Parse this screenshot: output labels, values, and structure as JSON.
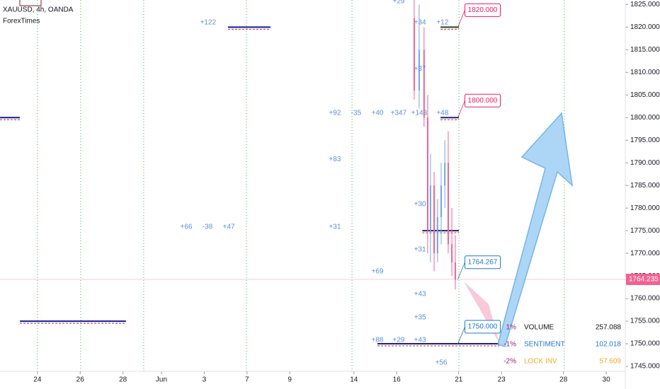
{
  "chart_data": {
    "type": "candlestick",
    "title": "XAUUSD, 4h, OANDA",
    "subtitle": "ForexTimes",
    "xlim": [
      -1.75,
      27.49
    ],
    "ylim": [
      1740,
      1826
    ],
    "yticks": [
      {
        "value": 1745,
        "label": "1745.000"
      },
      {
        "value": 1750,
        "label": "1750.000"
      },
      {
        "value": 1755,
        "label": "1755.000"
      },
      {
        "value": 1760,
        "label": "1760.000"
      },
      {
        "value": 1765,
        "label": "1765.000"
      },
      {
        "value": 1770,
        "label": "1770.000"
      },
      {
        "value": 1775,
        "label": "1775.000"
      },
      {
        "value": 1780,
        "label": "1780.000"
      },
      {
        "value": 1785,
        "label": "1785.000"
      },
      {
        "value": 1790,
        "label": "1790.000"
      },
      {
        "value": 1795,
        "label": "1795.000"
      },
      {
        "value": 1800,
        "label": "1800.000"
      },
      {
        "value": 1805,
        "label": "1805.000"
      },
      {
        "value": 1810,
        "label": "1810.000"
      },
      {
        "value": 1815,
        "label": "1815.000"
      },
      {
        "value": 1820,
        "label": "1820.000"
      },
      {
        "value": 1825,
        "label": "1825.000"
      }
    ],
    "xticks": [
      {
        "value": 0,
        "label": "24"
      },
      {
        "value": 2,
        "label": "26"
      },
      {
        "value": 4,
        "label": "28"
      },
      {
        "value": 5.8,
        "label": "Jun"
      },
      {
        "value": 7.8,
        "label": "3"
      },
      {
        "value": 9.8,
        "label": "7"
      },
      {
        "value": 11.8,
        "label": "9"
      },
      {
        "value": 14.8,
        "label": "14"
      },
      {
        "value": 16.8,
        "label": "16"
      },
      {
        "value": 19.7,
        "label": "21"
      },
      {
        "value": 21.7,
        "label": "23"
      },
      {
        "value": 24.6,
        "label": "28"
      },
      {
        "value": 26.6,
        "label": "30"
      }
    ],
    "vgrid_x": [
      0,
      2.02,
      4.97,
      9.77,
      14.71,
      19.71,
      24.64
    ],
    "grid_color": "#4caf50",
    "up_color": "#6fa8dc",
    "down_color": "#f06292",
    "candles": [
      {
        "x": 17.62,
        "open": 1822,
        "high": 1827,
        "low": 1804,
        "close": 1806
      },
      {
        "x": 17.85,
        "open": 1806,
        "high": 1825,
        "low": 1802,
        "close": 1815
      },
      {
        "x": 18.08,
        "open": 1815,
        "high": 1820,
        "low": 1798,
        "close": 1800
      },
      {
        "x": 18.25,
        "open": 1800,
        "high": 1805,
        "low": 1770,
        "close": 1775
      },
      {
        "x": 18.38,
        "open": 1775,
        "high": 1792,
        "low": 1768,
        "close": 1785
      },
      {
        "x": 18.55,
        "open": 1785,
        "high": 1788,
        "low": 1766,
        "close": 1770
      },
      {
        "x": 18.71,
        "open": 1770,
        "high": 1782,
        "low": 1768,
        "close": 1778
      },
      {
        "x": 18.88,
        "open": 1778,
        "high": 1790,
        "low": 1772,
        "close": 1785
      },
      {
        "x": 19.05,
        "open": 1785,
        "high": 1795,
        "low": 1780,
        "close": 1790
      },
      {
        "x": 19.21,
        "open": 1790,
        "high": 1797,
        "low": 1770,
        "close": 1772
      },
      {
        "x": 19.38,
        "open": 1772,
        "high": 1780,
        "low": 1765,
        "close": 1768
      },
      {
        "x": 19.54,
        "open": 1768,
        "high": 1774,
        "low": 1762,
        "close": 1764.2
      }
    ],
    "levels": [
      {
        "price": 1820,
        "from": 18.85,
        "to": 19.71,
        "color": "#1e4620"
      },
      {
        "price": 1800,
        "from": 18.85,
        "to": 19.71,
        "color": "#1a237e"
      },
      {
        "price": 1750,
        "from": 15.9,
        "to": 21.6,
        "color": "#1a237e"
      },
      {
        "price": 1820,
        "from": 8.91,
        "to": 10.9,
        "color": "#0d1b9e"
      },
      {
        "price": 1800,
        "from": -1.75,
        "to": -0.82,
        "color": "#0d1b9e"
      },
      {
        "price": 1755,
        "from": -0.82,
        "to": 4.14,
        "color": "#0d1b9e"
      },
      {
        "price": 1775,
        "from": 18.0,
        "to": 19.71,
        "color": "#1a237e"
      }
    ],
    "price_labels": [
      {
        "value": 1820,
        "label": "1820.000",
        "color": "#e91e63"
      },
      {
        "value": 1800,
        "label": "1800.000",
        "color": "#e91e63"
      },
      {
        "value": 1764.267,
        "label": "1764.267",
        "color": "#1f78c8"
      },
      {
        "value": 1750,
        "label": "1750.000",
        "color": "#1f78c8"
      }
    ],
    "price_label_x": 19.99,
    "last_price": {
      "value": 1764.235,
      "label": "1764.235",
      "color": "#f06292"
    },
    "annotations": [
      {
        "text": "+29",
        "x": 16.89,
        "y": 1825.7
      },
      {
        "text": "+122",
        "x": 7.98,
        "y": 1821.0
      },
      {
        "text": "+34",
        "x": 17.89,
        "y": 1821.0
      },
      {
        "text": "+12",
        "x": 18.94,
        "y": 1821.0
      },
      {
        "text": "+37",
        "x": 17.89,
        "y": 1810.8
      },
      {
        "text": "+92",
        "x": 13.91,
        "y": 1801.0
      },
      {
        "text": "-35",
        "x": 14.9,
        "y": 1801.0
      },
      {
        "text": "+40",
        "x": 15.9,
        "y": 1801.0
      },
      {
        "text": "+347",
        "x": 16.89,
        "y": 1801.0
      },
      {
        "text": "+143",
        "x": 17.85,
        "y": 1801.0
      },
      {
        "text": "+48",
        "x": 18.94,
        "y": 1801.0
      },
      {
        "text": "+83",
        "x": 13.91,
        "y": 1790.8
      },
      {
        "text": "+30",
        "x": 17.89,
        "y": 1780.8
      },
      {
        "text": "+66",
        "x": 6.96,
        "y": 1775.8
      },
      {
        "text": "-38",
        "x": 7.95,
        "y": 1775.8
      },
      {
        "text": "+47",
        "x": 8.95,
        "y": 1775.8
      },
      {
        "text": "+31",
        "x": 13.91,
        "y": 1775.8
      },
      {
        "text": "+31",
        "x": 17.89,
        "y": 1770.8
      },
      {
        "text": "+69",
        "x": 15.9,
        "y": 1766.0
      },
      {
        "text": "+43",
        "x": 17.89,
        "y": 1761.0
      },
      {
        "text": "+35",
        "x": 17.89,
        "y": 1755.8
      },
      {
        "text": "+88",
        "x": 15.9,
        "y": 1750.8
      },
      {
        "text": "+29",
        "x": 16.89,
        "y": 1750.8
      },
      {
        "text": "+43",
        "x": 17.89,
        "y": 1750.8
      },
      {
        "text": "+56",
        "x": 18.88,
        "y": 1745.8
      }
    ],
    "annotation_color": "#5b8fd6",
    "stats": [
      {
        "change": {
          "value": 1,
          "label": "1%"
        },
        "name": "VOLUME",
        "value": 257.088,
        "color": "#111111"
      },
      {
        "change": {
          "value": -1,
          "label": "-1%"
        },
        "name": "SENTIMENT",
        "value": 102.018,
        "color": "#1f78c8"
      },
      {
        "change": {
          "value": -2,
          "label": "-2%"
        },
        "name": "LOCK INV",
        "value": 57.609,
        "color": "#f5a623"
      }
    ],
    "change_color": "#9c1f6e"
  }
}
